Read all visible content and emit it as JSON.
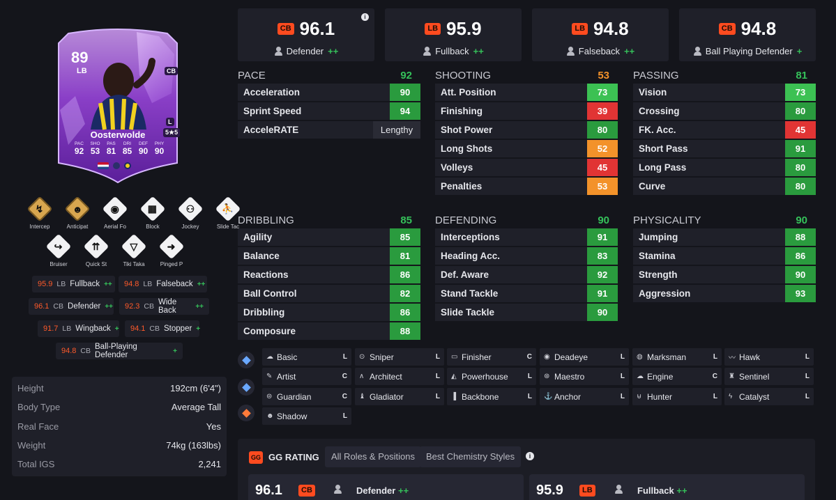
{
  "card": {
    "rating": "89",
    "position": "LB",
    "alt_position": "CB",
    "foot": "L",
    "skill_weak": "5★5",
    "name": "Oosterwolde",
    "stats": [
      {
        "label": "PAC",
        "value": "92"
      },
      {
        "label": "SHO",
        "value": "53"
      },
      {
        "label": "PAS",
        "value": "81"
      },
      {
        "label": "DRI",
        "value": "85"
      },
      {
        "label": "DEF",
        "value": "90"
      },
      {
        "label": "PHY",
        "value": "90"
      }
    ]
  },
  "playstyles_row1": [
    {
      "name": "Intercep",
      "icon": "intercept-icon",
      "glyph": "↯",
      "plus": true
    },
    {
      "name": "Anticipat",
      "icon": "anticipate-icon",
      "glyph": "☻",
      "plus": true
    },
    {
      "name": "Aerial Fo",
      "icon": "aerial-icon",
      "glyph": "◉",
      "plus": false
    },
    {
      "name": "Block",
      "icon": "block-icon",
      "glyph": "▦",
      "plus": false
    },
    {
      "name": "Jockey",
      "icon": "jockey-icon",
      "glyph": "⚇",
      "plus": false
    },
    {
      "name": "Slide Tac",
      "icon": "slide-tackle-icon",
      "glyph": "⛹",
      "plus": false
    }
  ],
  "playstyles_row2": [
    {
      "name": "Bruiser",
      "icon": "bruiser-icon",
      "glyph": "↪",
      "plus": false
    },
    {
      "name": "Quick St",
      "icon": "quick-step-icon",
      "glyph": "⇈",
      "plus": false
    },
    {
      "name": "Tiki Taka",
      "icon": "tiki-taka-icon",
      "glyph": "▽",
      "plus": false
    },
    {
      "name": "Pinged P",
      "icon": "pinged-pass-icon",
      "glyph": "➜",
      "plus": false
    }
  ],
  "role_chips": [
    {
      "value": "95.9",
      "pos": "LB",
      "name": "Fullback",
      "plus": "++"
    },
    {
      "value": "94.8",
      "pos": "LB",
      "name": "Falseback",
      "plus": "++"
    },
    {
      "value": "96.1",
      "pos": "CB",
      "name": "Defender",
      "plus": "++"
    },
    {
      "value": "92.3",
      "pos": "CB",
      "name": "Wide Back",
      "plus": "++"
    },
    {
      "value": "91.7",
      "pos": "LB",
      "name": "Wingback",
      "plus": "+"
    },
    {
      "value": "94.1",
      "pos": "CB",
      "name": "Stopper",
      "plus": "+"
    },
    {
      "value": "94.8",
      "pos": "CB",
      "name": "Ball-Playing Defender",
      "plus": "+"
    }
  ],
  "info": [
    {
      "key": "Height",
      "value": "192cm (6'4\")"
    },
    {
      "key": "Body Type",
      "value": "Average Tall"
    },
    {
      "key": "Real Face",
      "value": "Yes"
    },
    {
      "key": "Weight",
      "value": "74kg (163lbs)"
    },
    {
      "key": "Total IGS",
      "value": "2,241"
    }
  ],
  "top_roles": [
    {
      "pos": "CB",
      "value": "96.1",
      "name": "Defender",
      "plus": "++"
    },
    {
      "pos": "LB",
      "value": "95.9",
      "name": "Fullback",
      "plus": "++"
    },
    {
      "pos": "LB",
      "value": "94.8",
      "name": "Falseback",
      "plus": "++"
    },
    {
      "pos": "CB",
      "value": "94.8",
      "name": "Ball Playing Defender",
      "plus": "+"
    }
  ],
  "groups": {
    "pace": {
      "title": "PACE",
      "value": "92",
      "color": "#35c15a",
      "stats": [
        {
          "name": "Acceleration",
          "value": "90",
          "color": "#2a9b3e"
        },
        {
          "name": "Sprint Speed",
          "value": "94",
          "color": "#2a9b3e"
        },
        {
          "name": "AcceleRATE",
          "value": "Lengthy",
          "color": ""
        }
      ]
    },
    "shooting": {
      "title": "SHOOTING",
      "value": "53",
      "color": "#f3922a",
      "stats": [
        {
          "name": "Att. Position",
          "value": "73",
          "color": "#3cc153"
        },
        {
          "name": "Finishing",
          "value": "39",
          "color": "#e13434"
        },
        {
          "name": "Shot Power",
          "value": "80",
          "color": "#2a9b3e"
        },
        {
          "name": "Long Shots",
          "value": "52",
          "color": "#f3922a"
        },
        {
          "name": "Volleys",
          "value": "45",
          "color": "#e13434"
        },
        {
          "name": "Penalties",
          "value": "53",
          "color": "#f3922a"
        }
      ]
    },
    "passing": {
      "title": "PASSING",
      "value": "81",
      "color": "#35c15a",
      "stats": [
        {
          "name": "Vision",
          "value": "73",
          "color": "#3cc153"
        },
        {
          "name": "Crossing",
          "value": "80",
          "color": "#2a9b3e"
        },
        {
          "name": "FK. Acc.",
          "value": "45",
          "color": "#e13434"
        },
        {
          "name": "Short Pass",
          "value": "91",
          "color": "#2a9b3e"
        },
        {
          "name": "Long Pass",
          "value": "80",
          "color": "#2a9b3e"
        },
        {
          "name": "Curve",
          "value": "80",
          "color": "#2a9b3e"
        }
      ]
    },
    "dribbling": {
      "title": "DRIBBLING",
      "value": "85",
      "color": "#35c15a",
      "stats": [
        {
          "name": "Agility",
          "value": "85",
          "color": "#2a9b3e"
        },
        {
          "name": "Balance",
          "value": "81",
          "color": "#2a9b3e"
        },
        {
          "name": "Reactions",
          "value": "86",
          "color": "#2a9b3e"
        },
        {
          "name": "Ball Control",
          "value": "82",
          "color": "#2a9b3e"
        },
        {
          "name": "Dribbling",
          "value": "86",
          "color": "#2a9b3e"
        },
        {
          "name": "Composure",
          "value": "88",
          "color": "#2a9b3e"
        }
      ]
    },
    "defending": {
      "title": "DEFENDING",
      "value": "90",
      "color": "#35c15a",
      "stats": [
        {
          "name": "Interceptions",
          "value": "91",
          "color": "#2a9b3e"
        },
        {
          "name": "Heading Acc.",
          "value": "83",
          "color": "#2a9b3e"
        },
        {
          "name": "Def. Aware",
          "value": "92",
          "color": "#2a9b3e"
        },
        {
          "name": "Stand Tackle",
          "value": "91",
          "color": "#2a9b3e"
        },
        {
          "name": "Slide Tackle",
          "value": "90",
          "color": "#2a9b3e"
        }
      ]
    },
    "physicality": {
      "title": "PHYSICALITY",
      "value": "90",
      "color": "#35c15a",
      "stats": [
        {
          "name": "Jumping",
          "value": "88",
          "color": "#2a9b3e"
        },
        {
          "name": "Stamina",
          "value": "86",
          "color": "#2a9b3e"
        },
        {
          "name": "Strength",
          "value": "90",
          "color": "#2a9b3e"
        },
        {
          "name": "Aggression",
          "value": "93",
          "color": "#2a9b3e"
        }
      ]
    }
  },
  "chem_icons": [
    {
      "icon": "chem-basic-icon",
      "color": "#6aa8ff"
    },
    {
      "icon": "chem-hybrid-icon",
      "color": "#6aa8ff"
    },
    {
      "icon": "chem-defender-icon",
      "color": "#ff7b3a"
    }
  ],
  "chem_styles": [
    {
      "name": "Basic",
      "level": "L",
      "icon": "basic-icon",
      "glyph": "☁"
    },
    {
      "name": "Sniper",
      "level": "L",
      "icon": "sniper-icon",
      "glyph": "⊙"
    },
    {
      "name": "Finisher",
      "level": "C",
      "icon": "finisher-icon",
      "glyph": "▭"
    },
    {
      "name": "Deadeye",
      "level": "L",
      "icon": "deadeye-icon",
      "glyph": "◉"
    },
    {
      "name": "Marksman",
      "level": "L",
      "icon": "marksman-icon",
      "glyph": "◍"
    },
    {
      "name": "Hawk",
      "level": "L",
      "icon": "hawk-icon",
      "glyph": "〰"
    },
    {
      "name": "Artist",
      "level": "C",
      "icon": "artist-icon",
      "glyph": "✎"
    },
    {
      "name": "Architect",
      "level": "L",
      "icon": "architect-icon",
      "glyph": "∧"
    },
    {
      "name": "Powerhouse",
      "level": "L",
      "icon": "powerhouse-icon",
      "glyph": "◭"
    },
    {
      "name": "Maestro",
      "level": "L",
      "icon": "maestro-icon",
      "glyph": "⊛"
    },
    {
      "name": "Engine",
      "level": "C",
      "icon": "engine-icon",
      "glyph": "☁"
    },
    {
      "name": "Sentinel",
      "level": "L",
      "icon": "sentinel-icon",
      "glyph": "♜"
    },
    {
      "name": "Guardian",
      "level": "C",
      "icon": "guardian-icon",
      "glyph": "⊜"
    },
    {
      "name": "Gladiator",
      "level": "L",
      "icon": "gladiator-icon",
      "glyph": "♝"
    },
    {
      "name": "Backbone",
      "level": "L",
      "icon": "backbone-icon",
      "glyph": "▐"
    },
    {
      "name": "Anchor",
      "level": "L",
      "icon": "anchor-icon",
      "glyph": "⚓"
    },
    {
      "name": "Hunter",
      "level": "L",
      "icon": "hunter-icon",
      "glyph": "⊌"
    },
    {
      "name": "Catalyst",
      "level": "L",
      "icon": "catalyst-icon",
      "glyph": "ϟ"
    },
    {
      "name": "Shadow",
      "level": "L",
      "icon": "shadow-icon",
      "glyph": "☻"
    }
  ],
  "gg": {
    "logo": "GG",
    "title": "GG RATING",
    "tabs": [
      "All Roles & Positions",
      "Best Chemistry Styles"
    ],
    "rows": [
      {
        "value": "96.1",
        "pos": "CB",
        "name": "Defender",
        "plus": "++"
      },
      {
        "value": "95.9",
        "pos": "LB",
        "name": "Fullback",
        "plus": "++"
      }
    ]
  }
}
